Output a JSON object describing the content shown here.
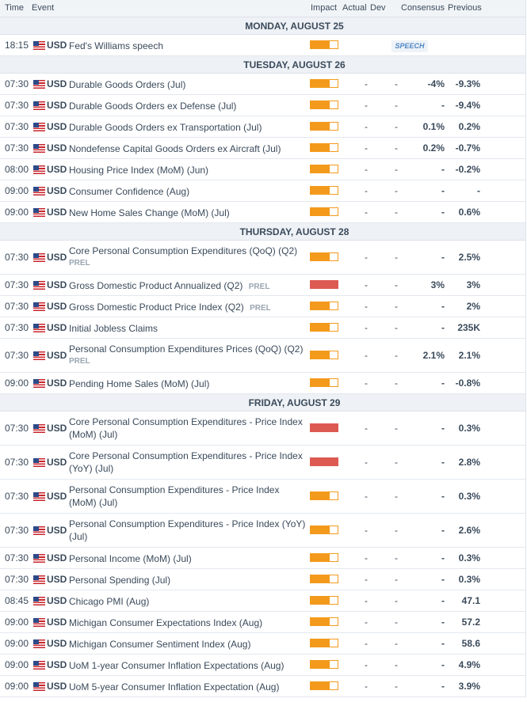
{
  "header": {
    "time": "Time",
    "event": "Event",
    "impact": "Impact",
    "actual": "Actual",
    "dev": "Dev",
    "consensus": "Consensus",
    "previous": "Previous"
  },
  "colors": {
    "impact_medium": "#f39a1c",
    "impact_high": "#dd5a52"
  },
  "days": [
    {
      "label": "MONDAY, AUGUST 25",
      "events": [
        {
          "time": "18:15",
          "currency": "USD",
          "name": "Fed's Williams speech",
          "tag": "",
          "impact": "medium",
          "actual": "",
          "dev": "",
          "consensus": "",
          "previous": "",
          "badge": "SPEECH"
        }
      ]
    },
    {
      "label": "TUESDAY, AUGUST 26",
      "events": [
        {
          "time": "07:30",
          "currency": "USD",
          "name": "Durable Goods Orders (Jul)",
          "tag": "",
          "impact": "medium",
          "actual": "-",
          "dev": "-",
          "consensus": "-4%",
          "previous": "-9.3%"
        },
        {
          "time": "07:30",
          "currency": "USD",
          "name": "Durable Goods Orders ex Defense (Jul)",
          "tag": "",
          "impact": "medium",
          "actual": "-",
          "dev": "-",
          "consensus": "-",
          "previous": "-9.4%"
        },
        {
          "time": "07:30",
          "currency": "USD",
          "name": "Durable Goods Orders ex Transportation (Jul)",
          "tag": "",
          "impact": "medium",
          "actual": "-",
          "dev": "-",
          "consensus": "0.1%",
          "previous": "0.2%"
        },
        {
          "time": "07:30",
          "currency": "USD",
          "name": "Nondefense Capital Goods Orders ex Aircraft (Jul)",
          "tag": "",
          "impact": "medium",
          "actual": "-",
          "dev": "-",
          "consensus": "0.2%",
          "previous": "-0.7%"
        },
        {
          "time": "08:00",
          "currency": "USD",
          "name": "Housing Price Index (MoM) (Jun)",
          "tag": "",
          "impact": "medium",
          "actual": "-",
          "dev": "-",
          "consensus": "-",
          "previous": "-0.2%"
        },
        {
          "time": "09:00",
          "currency": "USD",
          "name": "Consumer Confidence (Aug)",
          "tag": "",
          "impact": "medium",
          "actual": "-",
          "dev": "-",
          "consensus": "-",
          "previous": "-"
        },
        {
          "time": "09:00",
          "currency": "USD",
          "name": "New Home Sales Change (MoM) (Jul)",
          "tag": "",
          "impact": "medium",
          "actual": "-",
          "dev": "-",
          "consensus": "-",
          "previous": "0.6%"
        }
      ]
    },
    {
      "label": "THURSDAY, AUGUST 28",
      "events": [
        {
          "time": "07:30",
          "currency": "USD",
          "name": "Core Personal Consumption Expenditures (QoQ) (Q2)",
          "tag": "PREL",
          "tag_block": true,
          "tall": true,
          "impact": "medium",
          "actual": "-",
          "dev": "-",
          "consensus": "-",
          "previous": "2.5%"
        },
        {
          "time": "07:30",
          "currency": "USD",
          "name": "Gross Domestic Product Annualized (Q2)",
          "tag": "PREL",
          "impact": "high",
          "actual": "-",
          "dev": "-",
          "consensus": "3%",
          "previous": "3%"
        },
        {
          "time": "07:30",
          "currency": "USD",
          "name": "Gross Domestic Product Price Index (Q2)",
          "tag": "PREL",
          "impact": "medium",
          "actual": "-",
          "dev": "-",
          "consensus": "-",
          "previous": "2%"
        },
        {
          "time": "07:30",
          "currency": "USD",
          "name": "Initial Jobless Claims",
          "tag": "",
          "impact": "medium",
          "actual": "-",
          "dev": "-",
          "consensus": "-",
          "previous": "235K"
        },
        {
          "time": "07:30",
          "currency": "USD",
          "name": "Personal Consumption Expenditures Prices (QoQ) (Q2)",
          "tag": "PREL",
          "tag_block": true,
          "tall": true,
          "impact": "medium",
          "actual": "-",
          "dev": "-",
          "consensus": "2.1%",
          "previous": "2.1%"
        },
        {
          "time": "09:00",
          "currency": "USD",
          "name": "Pending Home Sales (MoM) (Jul)",
          "tag": "",
          "impact": "medium",
          "actual": "-",
          "dev": "-",
          "consensus": "-",
          "previous": "-0.8%"
        }
      ]
    },
    {
      "label": "FRIDAY, AUGUST 29",
      "events": [
        {
          "time": "07:30",
          "currency": "USD",
          "name": "Core Personal Consumption Expenditures - Price Index (MoM) (Jul)",
          "tag": "",
          "tall": true,
          "impact": "high",
          "actual": "-",
          "dev": "-",
          "consensus": "-",
          "previous": "0.3%"
        },
        {
          "time": "07:30",
          "currency": "USD",
          "name": "Core Personal Consumption Expenditures - Price Index (YoY) (Jul)",
          "tag": "",
          "tall": true,
          "impact": "high",
          "actual": "-",
          "dev": "-",
          "consensus": "-",
          "previous": "2.8%"
        },
        {
          "time": "07:30",
          "currency": "USD",
          "name": "Personal Consumption Expenditures - Price Index (MoM) (Jul)",
          "tag": "",
          "tall": true,
          "impact": "medium",
          "actual": "-",
          "dev": "-",
          "consensus": "-",
          "previous": "0.3%"
        },
        {
          "time": "07:30",
          "currency": "USD",
          "name": "Personal Consumption Expenditures - Price Index (YoY) (Jul)",
          "tag": "",
          "tall": true,
          "impact": "medium",
          "actual": "-",
          "dev": "-",
          "consensus": "-",
          "previous": "2.6%"
        },
        {
          "time": "07:30",
          "currency": "USD",
          "name": "Personal Income (MoM) (Jul)",
          "tag": "",
          "impact": "medium",
          "actual": "-",
          "dev": "-",
          "consensus": "-",
          "previous": "0.3%"
        },
        {
          "time": "07:30",
          "currency": "USD",
          "name": "Personal Spending (Jul)",
          "tag": "",
          "impact": "medium",
          "actual": "-",
          "dev": "-",
          "consensus": "-",
          "previous": "0.3%"
        },
        {
          "time": "08:45",
          "currency": "USD",
          "name": "Chicago PMI (Aug)",
          "tag": "",
          "impact": "medium",
          "actual": "-",
          "dev": "-",
          "consensus": "-",
          "previous": "47.1"
        },
        {
          "time": "09:00",
          "currency": "USD",
          "name": "Michigan Consumer Expectations Index (Aug)",
          "tag": "",
          "impact": "medium",
          "actual": "-",
          "dev": "-",
          "consensus": "-",
          "previous": "57.2"
        },
        {
          "time": "09:00",
          "currency": "USD",
          "name": "Michigan Consumer Sentiment Index (Aug)",
          "tag": "",
          "impact": "medium",
          "actual": "-",
          "dev": "-",
          "consensus": "-",
          "previous": "58.6"
        },
        {
          "time": "09:00",
          "currency": "USD",
          "name": "UoM 1-year Consumer Inflation Expectations (Aug)",
          "tag": "",
          "impact": "medium",
          "actual": "-",
          "dev": "-",
          "consensus": "-",
          "previous": "4.9%"
        },
        {
          "time": "09:00",
          "currency": "USD",
          "name": "UoM 5-year Consumer Inflation Expectation (Aug)",
          "tag": "",
          "impact": "medium",
          "actual": "-",
          "dev": "-",
          "consensus": "-",
          "previous": "3.9%"
        }
      ]
    }
  ]
}
